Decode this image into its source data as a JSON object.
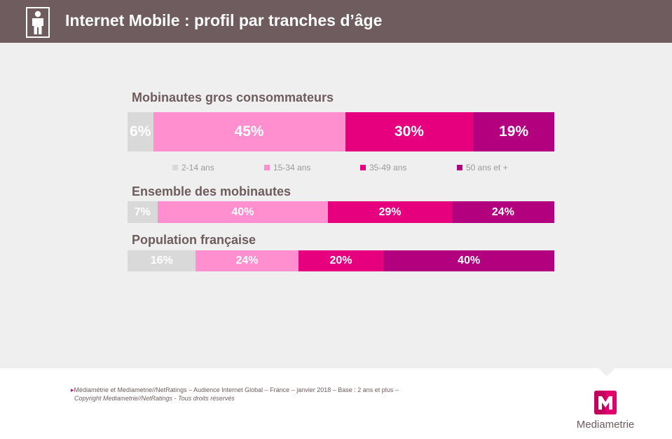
{
  "header": {
    "title": "Internet Mobile : profil par tranches d’âge"
  },
  "colors": {
    "header_bg": "#6e5c5e",
    "panel_bg": "#efefef",
    "series": [
      "#d9d9d9",
      "#ff8fcf",
      "#e6007e",
      "#b3007f"
    ]
  },
  "chart_data": {
    "type": "bar",
    "orientation": "horizontal-stacked-100",
    "series": [
      {
        "name": "2-14 ans",
        "color": "#d9d9d9"
      },
      {
        "name": "15-34 ans",
        "color": "#ff8fcf"
      },
      {
        "name": "35-49 ans",
        "color": "#e6007e"
      },
      {
        "name": "50 ans et +",
        "color": "#b3007f"
      }
    ],
    "groups": [
      {
        "label": "Mobinautes gros consommateurs",
        "values": [
          6,
          45,
          30,
          19
        ],
        "labels": [
          "6%",
          "45%",
          "30%",
          "19%"
        ]
      },
      {
        "label": "Ensemble des mobinautes",
        "values": [
          7,
          40,
          29,
          24
        ],
        "labels": [
          "7%",
          "40%",
          "29%",
          "24%"
        ]
      },
      {
        "label": "Population française",
        "values": [
          16,
          24,
          20,
          40
        ],
        "labels": [
          "16%",
          "24%",
          "20%",
          "40%"
        ]
      }
    ],
    "legend_position": "below first bar"
  },
  "footer": {
    "source": "Médiamétrie et Mediametrie//NetRatings – Audience Internet Global – France – janvier 2018 – Base : 2 ans et plus –",
    "copyright": "Copyright Mediametrie//NetRatings - Tous droits réservés",
    "logo_text": "Mediametrie"
  }
}
